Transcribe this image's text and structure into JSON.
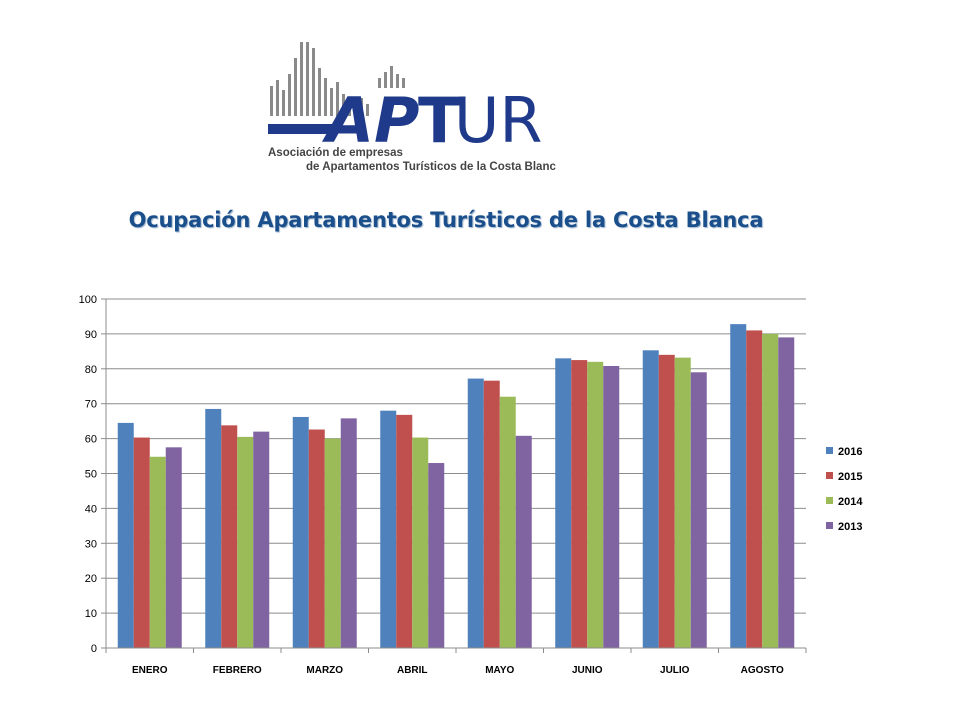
{
  "logo": {
    "brand": "APTUR",
    "line1": "Asociación de empresas",
    "line2": "de Apartamentos Turísticos de la Costa Blanca"
  },
  "chart_data": {
    "type": "bar",
    "title": "Ocupación Apartamentos Turísticos de la Costa Blanca",
    "xlabel": "",
    "ylabel": "",
    "ylim": [
      0,
      100
    ],
    "yticks": [
      "0",
      "10",
      "20",
      "30",
      "40",
      "50",
      "60",
      "70",
      "80",
      "90",
      "100"
    ],
    "grid": true,
    "legend_position": "right",
    "categories": [
      "ENERO",
      "FEBRERO",
      "MARZO",
      "ABRIL",
      "MAYO",
      "JUNIO",
      "JULIO",
      "AGOSTO"
    ],
    "series": [
      {
        "name": "2016",
        "color": "#4f81bd",
        "values": [
          64.5,
          68.5,
          66.2,
          68.0,
          77.2,
          83.0,
          85.3,
          92.8
        ]
      },
      {
        "name": "2015",
        "color": "#c0504d",
        "values": [
          60.3,
          63.8,
          62.6,
          66.8,
          76.6,
          82.5,
          84.0,
          91.0
        ]
      },
      {
        "name": "2014",
        "color": "#9bbb59",
        "values": [
          54.8,
          60.5,
          60.0,
          60.3,
          72.0,
          82.0,
          83.2,
          90.0
        ]
      },
      {
        "name": "2013",
        "color": "#8064a2",
        "values": [
          57.5,
          62.0,
          65.8,
          53.0,
          60.8,
          80.8,
          79.0,
          89.0
        ]
      }
    ]
  }
}
